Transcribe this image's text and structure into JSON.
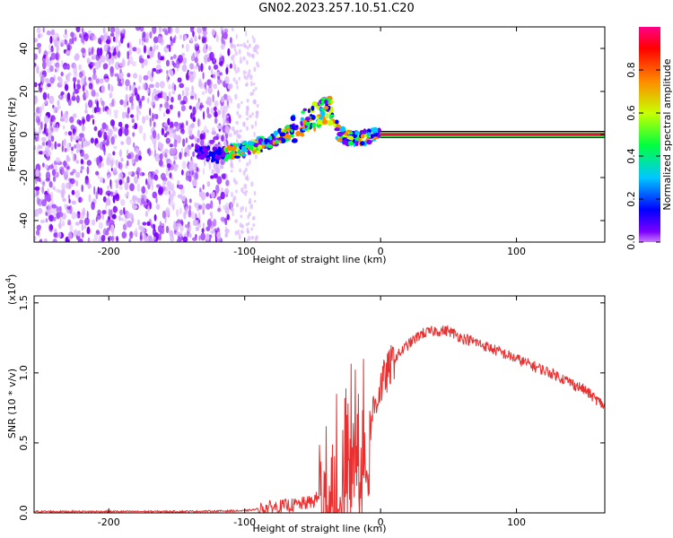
{
  "title": "GN02.2023.257.10.51.C20",
  "chart_data": [
    {
      "type": "heatmap",
      "xlabel": "Height of straight line (km)",
      "ylabel": "Frequency (Hz)",
      "xlim": [
        -255,
        165
      ],
      "ylim": [
        -50,
        50
      ],
      "xticks": [
        -200,
        -100,
        0,
        100
      ],
      "yticks": [
        -40,
        -20,
        0,
        20,
        40
      ],
      "colorbar": {
        "label": "Normalized spectral amplitude",
        "range": [
          0,
          1
        ],
        "ticks": [
          "0.0",
          "0.2",
          "0.4",
          "0.6",
          "0.8"
        ],
        "colormap": [
          "#c879ff",
          "#7a00ff",
          "#0000ff",
          "#00c8ff",
          "#00ff40",
          "#c8ff00",
          "#ff8800",
          "#ff0000",
          "#ff0088"
        ]
      },
      "features": {
        "noise_region_x": [
          -255,
          -110
        ],
        "sparse_noise_x": [
          -110,
          -90
        ],
        "track": [
          {
            "x": -135,
            "y": -8
          },
          {
            "x": -120,
            "y": -10
          },
          {
            "x": -110,
            "y": -8
          },
          {
            "x": -100,
            "y": -7
          },
          {
            "x": -85,
            "y": -4
          },
          {
            "x": -70,
            "y": 0
          },
          {
            "x": -60,
            "y": 4
          },
          {
            "x": -50,
            "y": 8
          },
          {
            "x": -40,
            "y": 12
          },
          {
            "x": -35,
            "y": 10
          },
          {
            "x": -30,
            "y": 0
          },
          {
            "x": -20,
            "y": -2
          },
          {
            "x": -10,
            "y": -1
          },
          {
            "x": 0,
            "y": 0
          }
        ],
        "steady_line": {
          "x_start": 0,
          "x_end": 165,
          "y": 0,
          "amplitude": 0.9
        }
      }
    },
    {
      "type": "line",
      "xlabel": "Height of straight line (km)",
      "ylabel": "SNR (10 * v/v)",
      "multiplier_label": "(x10",
      "multiplier_exp": "4",
      "xlim": [
        -255,
        165
      ],
      "ylim": [
        0,
        1.55
      ],
      "xticks": [
        -200,
        -100,
        0,
        100
      ],
      "yticks": [
        "0.0",
        "0.5",
        "1.0",
        "1.5"
      ],
      "color": "#e83030",
      "series": [
        {
          "x": [
            -255,
            -200,
            -150,
            -100,
            -80,
            -60,
            -50,
            -45,
            -40,
            -35,
            -30,
            -25,
            -20,
            -15,
            -10,
            -5,
            0,
            5,
            10,
            20,
            30,
            40,
            50,
            60,
            70,
            80,
            90,
            100,
            110,
            120,
            130,
            140,
            150,
            160,
            165
          ],
          "y": [
            0.01,
            0.01,
            0.01,
            0.015,
            0.04,
            0.06,
            0.08,
            0.12,
            0.18,
            0.22,
            0.3,
            0.4,
            0.55,
            0.5,
            0.52,
            0.75,
            0.9,
            1.0,
            1.1,
            1.2,
            1.28,
            1.3,
            1.3,
            1.25,
            1.22,
            1.18,
            1.14,
            1.1,
            1.06,
            1.02,
            0.98,
            0.93,
            0.88,
            0.8,
            0.76
          ]
        }
      ]
    }
  ]
}
